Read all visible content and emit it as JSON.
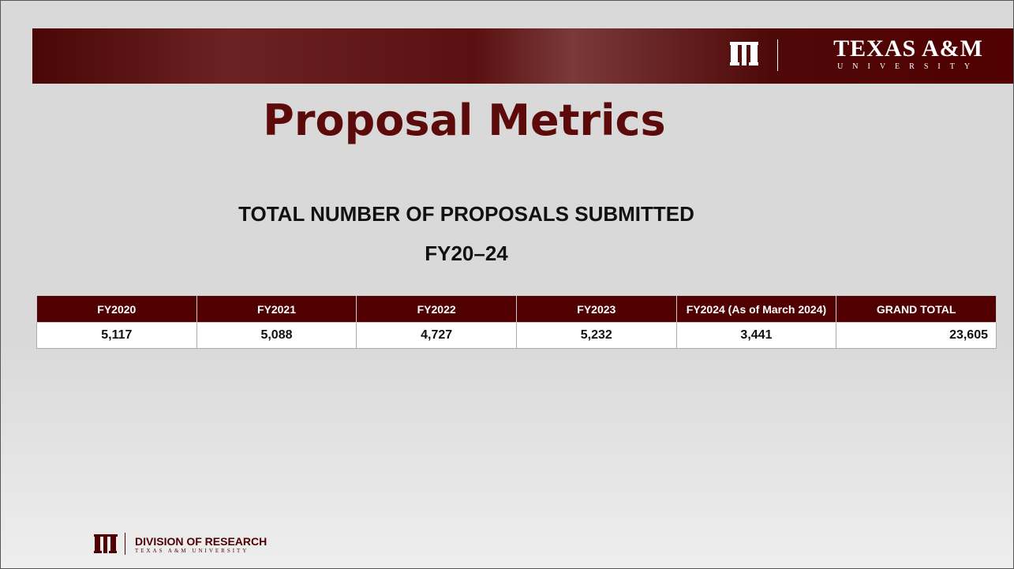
{
  "header": {
    "brand": "TEXAS A&M",
    "brand_sub": "UNIVERSITY"
  },
  "title": "Proposal Metrics",
  "subtitle": [
    "TOTAL NUMBER OF PROPOSALS SUBMITTED",
    "FY20–24"
  ],
  "table": {
    "columns": [
      "FY2020",
      "FY2021",
      "FY2022",
      "FY2023",
      "FY2024 (As of March 2024)",
      "GRAND TOTAL"
    ],
    "rows": [
      [
        "5,117",
        "5,088",
        "4,727",
        "5,232",
        "3,441",
        "23,605"
      ]
    ]
  },
  "footer": {
    "unit": "DIVISION OF RESEARCH",
    "unit_sub": "TEXAS A&M UNIVERSITY"
  }
}
